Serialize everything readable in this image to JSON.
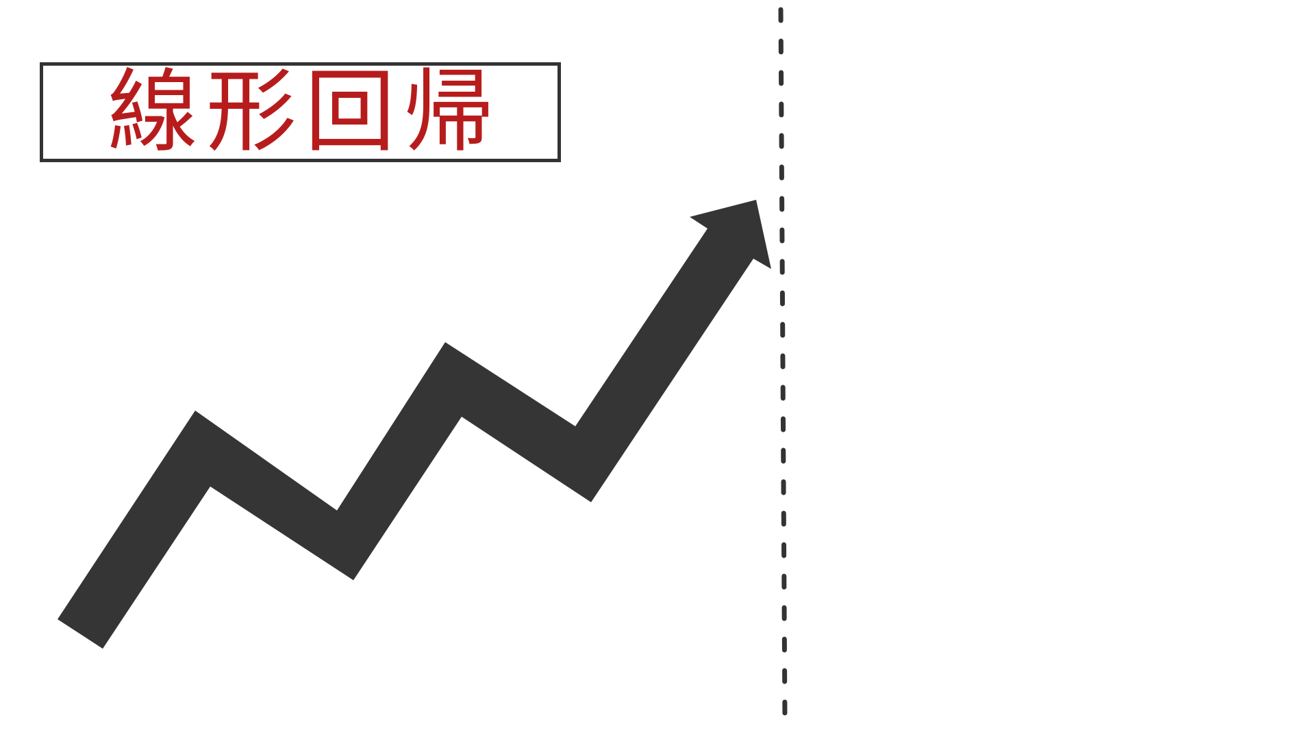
{
  "title": {
    "text": "線形回帰",
    "color": "#b71c1c",
    "frame_color": "#333333"
  },
  "arrow": {
    "color": "#353535",
    "direction": "up-right",
    "style": "zigzag"
  },
  "divider": {
    "style": "dashed",
    "color": "#333333"
  },
  "background_color": "#ffffff"
}
